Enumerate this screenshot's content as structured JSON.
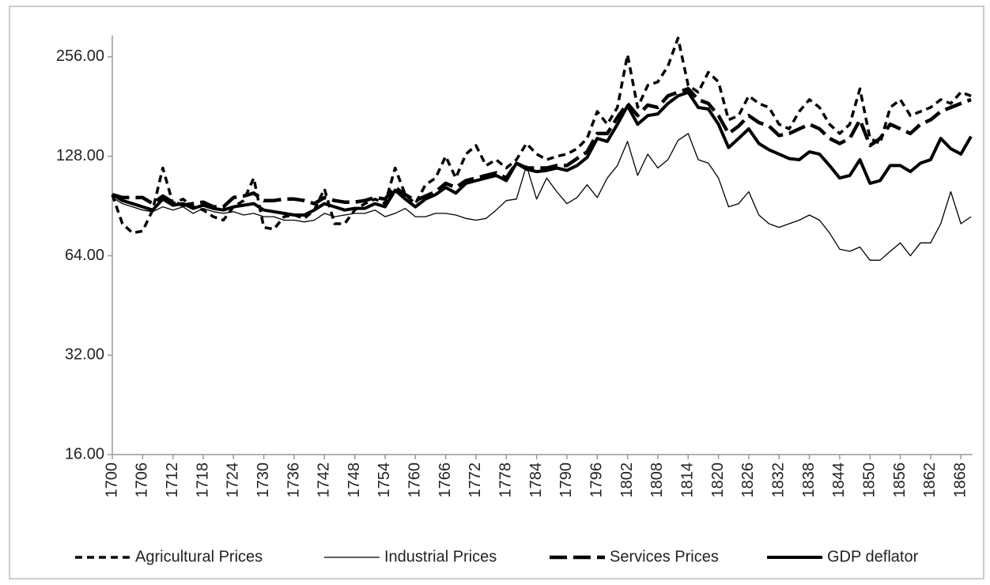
{
  "chart_data": {
    "type": "line",
    "log_scale_y": true,
    "grid": false,
    "legend": "bottom",
    "x": [
      1700,
      1702,
      1704,
      1706,
      1708,
      1710,
      1712,
      1714,
      1716,
      1718,
      1720,
      1722,
      1724,
      1726,
      1728,
      1730,
      1732,
      1734,
      1736,
      1738,
      1740,
      1742,
      1744,
      1746,
      1748,
      1750,
      1752,
      1754,
      1756,
      1758,
      1760,
      1762,
      1764,
      1766,
      1768,
      1770,
      1772,
      1774,
      1776,
      1778,
      1780,
      1782,
      1784,
      1786,
      1788,
      1790,
      1792,
      1794,
      1796,
      1798,
      1800,
      1802,
      1804,
      1806,
      1808,
      1810,
      1812,
      1814,
      1816,
      1818,
      1820,
      1822,
      1824,
      1826,
      1828,
      1830,
      1832,
      1834,
      1836,
      1838,
      1840,
      1842,
      1844,
      1846,
      1848,
      1850,
      1852,
      1854,
      1856,
      1858,
      1860,
      1862,
      1864,
      1866,
      1868,
      1870
    ],
    "xlim": [
      1700,
      1870
    ],
    "xticks": [
      1700,
      1706,
      1712,
      1718,
      1724,
      1730,
      1736,
      1742,
      1748,
      1754,
      1760,
      1766,
      1772,
      1778,
      1784,
      1790,
      1796,
      1802,
      1808,
      1814,
      1820,
      1826,
      1832,
      1838,
      1844,
      1850,
      1856,
      1862,
      1868
    ],
    "ylim": [
      16,
      297
    ],
    "yticks": [
      {
        "value": 16,
        "label": "16.00"
      },
      {
        "value": 32,
        "label": "32.00"
      },
      {
        "value": 64,
        "label": "64.00"
      },
      {
        "value": 128,
        "label": "128.00"
      },
      {
        "value": 256,
        "label": "256.00"
      }
    ],
    "series": [
      {
        "name": "Agricultural Prices",
        "color": "#000000",
        "width": 3.5,
        "dash": "9,6",
        "values": [
          98,
          80,
          75,
          76,
          88,
          118,
          92,
          95,
          90,
          88,
          84,
          82,
          90,
          94,
          110,
          78,
          77,
          84,
          85,
          83,
          88,
          102,
          80,
          80,
          88,
          92,
          95,
          92,
          118,
          98,
          92,
          105,
          110,
          128,
          110,
          130,
          138,
          120,
          125,
          118,
          125,
          140,
          130,
          125,
          128,
          130,
          135,
          145,
          175,
          160,
          180,
          260,
          180,
          210,
          215,
          240,
          292,
          210,
          200,
          230,
          215,
          165,
          170,
          195,
          185,
          180,
          160,
          155,
          175,
          190,
          180,
          160,
          150,
          160,
          205,
          145,
          140,
          180,
          190,
          170,
          175,
          180,
          190,
          185,
          200,
          195
        ]
      },
      {
        "name": "Industrial Prices",
        "color": "#000000",
        "width": 1.3,
        "dash": "",
        "values": [
          96,
          92,
          90,
          88,
          87,
          90,
          88,
          90,
          86,
          89,
          87,
          86,
          87,
          85,
          86,
          84,
          84,
          82,
          82,
          81,
          82,
          86,
          84,
          85,
          86,
          86,
          88,
          84,
          86,
          89,
          84,
          84,
          86,
          86,
          85,
          83,
          82,
          83,
          88,
          94,
          95,
          120,
          95,
          110,
          100,
          92,
          96,
          105,
          96,
          110,
          120,
          142,
          112,
          130,
          118,
          125,
          143,
          150,
          125,
          122,
          110,
          90,
          92,
          100,
          85,
          80,
          78,
          80,
          82,
          85,
          82,
          75,
          67,
          66,
          68,
          62,
          62,
          66,
          70,
          64,
          70,
          70,
          80,
          100,
          80,
          84
        ]
      },
      {
        "name": "Services Prices",
        "color": "#000000",
        "width": 4.5,
        "dash": "22,8",
        "values": [
          98,
          96,
          96,
          96,
          92,
          97,
          93,
          91,
          92,
          93,
          90,
          90,
          96,
          97,
          99,
          94,
          94,
          95,
          95,
          94,
          92,
          96,
          94,
          93,
          93,
          94,
          96,
          95,
          103,
          98,
          94,
          97,
          100,
          106,
          103,
          108,
          110,
          112,
          114,
          110,
          122,
          118,
          118,
          118,
          120,
          120,
          126,
          132,
          150,
          150,
          168,
          185,
          170,
          183,
          180,
          195,
          200,
          205,
          190,
          185,
          170,
          150,
          158,
          170,
          162,
          158,
          148,
          150,
          155,
          160,
          155,
          145,
          140,
          145,
          165,
          138,
          145,
          160,
          155,
          150,
          160,
          165,
          175,
          180,
          185,
          190
        ]
      },
      {
        "name": "GDP deflator",
        "color": "#000000",
        "width": 4,
        "dash": "",
        "values": [
          98,
          94,
          92,
          90,
          88,
          95,
          91,
          92,
          89,
          91,
          89,
          88,
          90,
          91,
          92,
          88,
          87,
          86,
          85,
          85,
          88,
          92,
          90,
          88,
          89,
          89,
          92,
          90,
          101,
          95,
          90,
          95,
          98,
          103,
          99,
          106,
          108,
          110,
          112,
          108,
          122,
          117,
          115,
          116,
          118,
          116,
          120,
          127,
          145,
          142,
          160,
          182,
          160,
          170,
          172,
          185,
          195,
          200,
          180,
          178,
          160,
          136,
          145,
          155,
          140,
          134,
          130,
          126,
          125,
          132,
          130,
          120,
          110,
          112,
          125,
          106,
          108,
          120,
          120,
          115,
          122,
          125,
          145,
          135,
          130,
          147
        ]
      }
    ]
  }
}
